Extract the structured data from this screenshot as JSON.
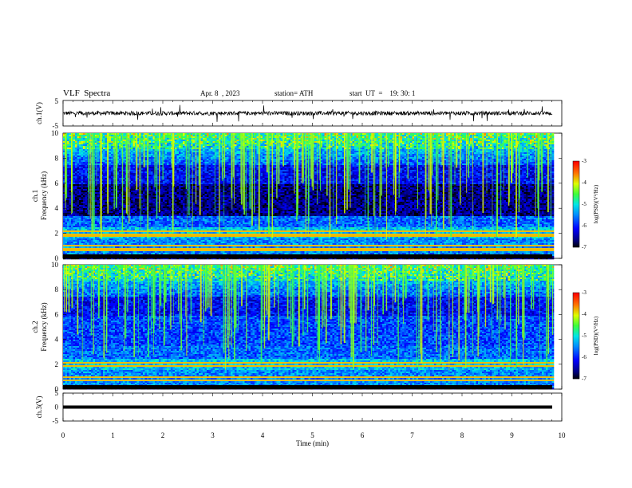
{
  "header": {
    "title": "VLF  Spectra",
    "date": "Apr. 8  , 2023",
    "station": "station= ATH",
    "start": "start  UT  =    19: 30: 1"
  },
  "chart_data": [
    {
      "type": "line",
      "ylabel": "ch.1(V)",
      "ylim": [
        -5,
        5
      ],
      "yticks": [
        "5",
        "-5"
      ],
      "xlim": [
        0,
        10
      ],
      "description_values_baseline": 0,
      "approx_amplitude": 1,
      "line_color": "#000000"
    },
    {
      "type": "heatmap",
      "ylabel": "ch.1\nFrequency  (kHz)",
      "ylim": [
        0,
        10
      ],
      "yticks": [
        "0",
        "2",
        "4",
        "6",
        "8",
        "10"
      ],
      "xlim": [
        0,
        9.83
      ],
      "colorbar": {
        "label": "log(PSD)(V²/Hz)",
        "range": [
          -7,
          -3
        ],
        "ticks": [
          "-3",
          "-4",
          "-5",
          "-6",
          "-7"
        ]
      }
    },
    {
      "type": "heatmap",
      "ylabel": "ch.2\nFrequency  (kHz)",
      "ylim": [
        0,
        10
      ],
      "yticks": [
        "0",
        "2",
        "4",
        "6",
        "8",
        "10"
      ],
      "xlim": [
        0,
        9.83
      ],
      "colorbar": {
        "label": "log(PSD)(V²/Hz)",
        "range": [
          -7,
          -3
        ],
        "ticks": [
          "-3",
          "-4",
          "-5",
          "-6",
          "-7"
        ]
      }
    },
    {
      "type": "line",
      "ylabel": "ch.3(V)",
      "ylim": [
        -5,
        5
      ],
      "yticks": [
        "5",
        "0",
        "-5"
      ],
      "xlim": [
        0,
        9.83
      ],
      "constant_value": 0
    }
  ],
  "xaxis": {
    "label": "Time  (min)",
    "ticks": [
      "0",
      "1",
      "2",
      "3",
      "4",
      "5",
      "6",
      "7",
      "8",
      "9",
      "10"
    ]
  }
}
